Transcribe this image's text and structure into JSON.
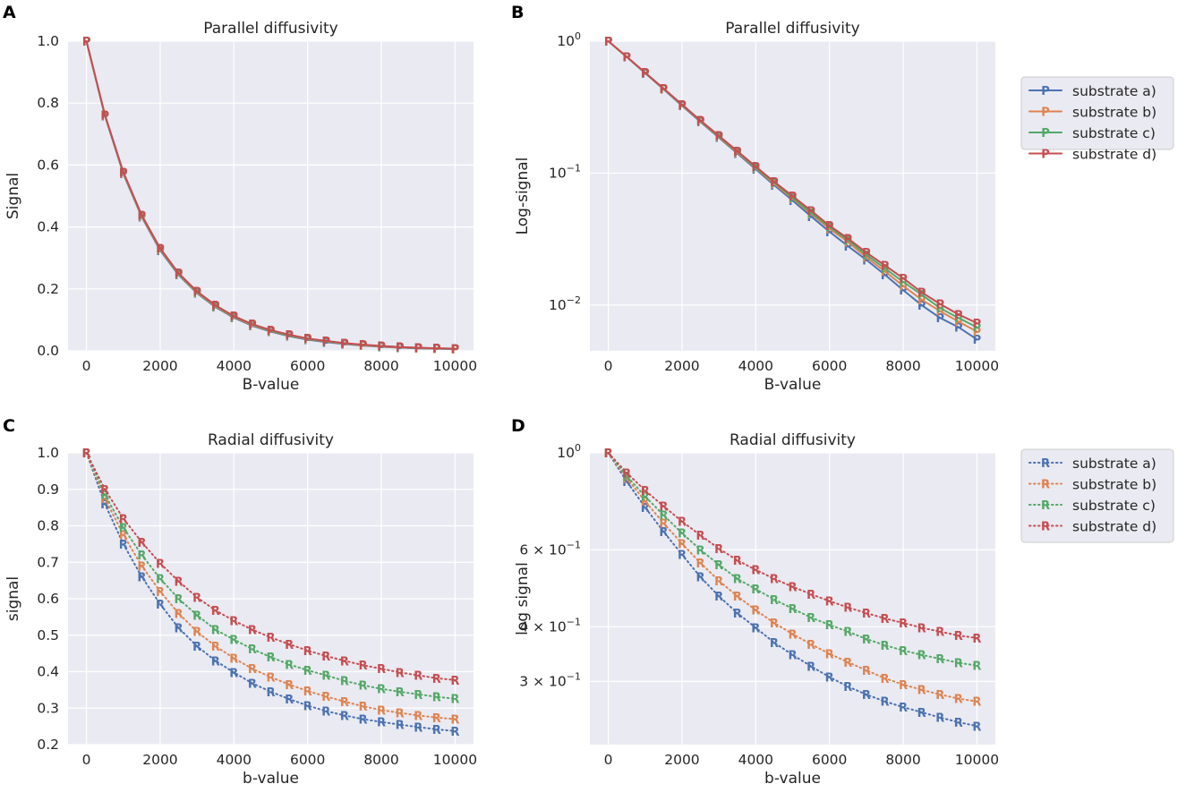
{
  "panels": {
    "A": {
      "letter": "A",
      "title": "Parallel diffusivity",
      "xlabel": "B-value",
      "ylabel": "Signal"
    },
    "B": {
      "letter": "B",
      "title": "Parallel diffusivity",
      "xlabel": "B-value",
      "ylabel": "Log-signal"
    },
    "C": {
      "letter": "C",
      "title": "Radial diffusivity",
      "xlabel": "b-value",
      "ylabel": "signal"
    },
    "D": {
      "letter": "D",
      "title": "Radial diffusivity",
      "xlabel": "b-value",
      "ylabel": "log signal"
    }
  },
  "legend_top": {
    "marker": "P",
    "entries": [
      "substrate a)",
      "substrate b)",
      "substrate c)",
      "substrate d)"
    ],
    "line_style": "solid"
  },
  "legend_bottom": {
    "marker": "R",
    "entries": [
      "substrate a)",
      "substrate b)",
      "substrate c)",
      "substrate d)"
    ],
    "line_style": "dotted"
  },
  "colors": {
    "substrate_a": "#4c72b0",
    "substrate_b": "#dd8452",
    "substrate_c": "#55a868",
    "substrate_d": "#c44e52",
    "axes_bg": "#eaeaf2",
    "grid": "#ffffff"
  },
  "chart_data": [
    {
      "panel": "A",
      "type": "line",
      "title": "Parallel diffusivity",
      "xlabel": "B-value",
      "ylabel": "Signal",
      "xlim": [
        -500,
        10500
      ],
      "ylim": [
        0,
        1.0
      ],
      "yscale": "linear",
      "xticks": [
        0,
        2000,
        4000,
        6000,
        8000,
        10000
      ],
      "yticks": [
        0.0,
        0.2,
        0.4,
        0.6,
        0.8,
        1.0
      ],
      "ytick_labels": [
        "0.0",
        "0.2",
        "0.4",
        "0.6",
        "0.8",
        "1.0"
      ],
      "x": [
        0,
        500,
        1000,
        1500,
        2000,
        2500,
        3000,
        3500,
        4000,
        4500,
        5000,
        5500,
        6000,
        6500,
        7000,
        7500,
        8000,
        8500,
        9000,
        9500,
        10000
      ],
      "series": [
        {
          "name": "substrate a)",
          "values": [
            1.0,
            0.759,
            0.572,
            0.432,
            0.324,
            0.245,
            0.186,
            0.141,
            0.107,
            0.081,
            0.062,
            0.047,
            0.036,
            0.028,
            0.022,
            0.017,
            0.013,
            0.01,
            0.008,
            0.0068,
            0.0055
          ]
        },
        {
          "name": "substrate b)",
          "values": [
            1.0,
            0.76,
            0.574,
            0.434,
            0.327,
            0.247,
            0.188,
            0.143,
            0.109,
            0.083,
            0.064,
            0.049,
            0.038,
            0.03,
            0.023,
            0.018,
            0.014,
            0.011,
            0.009,
            0.0075,
            0.0063
          ]
        },
        {
          "name": "substrate c)",
          "values": [
            1.0,
            0.761,
            0.576,
            0.436,
            0.329,
            0.249,
            0.19,
            0.145,
            0.11,
            0.085,
            0.065,
            0.05,
            0.039,
            0.031,
            0.024,
            0.019,
            0.015,
            0.012,
            0.0095,
            0.008,
            0.0068
          ]
        },
        {
          "name": "substrate d)",
          "values": [
            1.0,
            0.762,
            0.577,
            0.438,
            0.331,
            0.251,
            0.192,
            0.147,
            0.112,
            0.086,
            0.067,
            0.052,
            0.04,
            0.032,
            0.025,
            0.02,
            0.016,
            0.0125,
            0.0102,
            0.0085,
            0.0073
          ]
        }
      ]
    },
    {
      "panel": "B",
      "type": "line",
      "title": "Parallel diffusivity",
      "xlabel": "B-value",
      "ylabel": "Log-signal",
      "xlim": [
        -500,
        10500
      ],
      "ylim": [
        0.0045,
        1.0
      ],
      "yscale": "log",
      "xticks": [
        0,
        2000,
        4000,
        6000,
        8000,
        10000
      ],
      "yticks": [
        1.0,
        0.1,
        0.01
      ],
      "ytick_labels": [
        {
          "base": "10",
          "exp": "0"
        },
        {
          "base": "10",
          "exp": "−1"
        },
        {
          "base": "10",
          "exp": "−2"
        }
      ],
      "x": [
        0,
        500,
        1000,
        1500,
        2000,
        2500,
        3000,
        3500,
        4000,
        4500,
        5000,
        5500,
        6000,
        6500,
        7000,
        7500,
        8000,
        8500,
        9000,
        9500,
        10000
      ],
      "series": [
        {
          "name": "substrate a)",
          "values": [
            1.0,
            0.759,
            0.572,
            0.432,
            0.324,
            0.245,
            0.186,
            0.141,
            0.107,
            0.081,
            0.062,
            0.047,
            0.036,
            0.028,
            0.022,
            0.017,
            0.013,
            0.01,
            0.008,
            0.0068,
            0.0055
          ]
        },
        {
          "name": "substrate b)",
          "values": [
            1.0,
            0.76,
            0.574,
            0.434,
            0.327,
            0.247,
            0.188,
            0.143,
            0.109,
            0.083,
            0.064,
            0.049,
            0.038,
            0.03,
            0.023,
            0.018,
            0.014,
            0.011,
            0.009,
            0.0075,
            0.0063
          ]
        },
        {
          "name": "substrate c)",
          "values": [
            1.0,
            0.761,
            0.576,
            0.436,
            0.329,
            0.249,
            0.19,
            0.145,
            0.11,
            0.085,
            0.065,
            0.05,
            0.039,
            0.031,
            0.024,
            0.019,
            0.015,
            0.012,
            0.0095,
            0.008,
            0.0068
          ]
        },
        {
          "name": "substrate d)",
          "values": [
            1.0,
            0.762,
            0.577,
            0.438,
            0.331,
            0.251,
            0.192,
            0.147,
            0.112,
            0.086,
            0.067,
            0.052,
            0.04,
            0.032,
            0.025,
            0.02,
            0.016,
            0.0125,
            0.0102,
            0.0085,
            0.0073
          ]
        }
      ]
    },
    {
      "panel": "C",
      "type": "line",
      "title": "Radial diffusivity",
      "xlabel": "b-value",
      "ylabel": "signal",
      "xlim": [
        -500,
        10500
      ],
      "ylim": [
        0.2,
        1.0
      ],
      "yscale": "linear",
      "xticks": [
        0,
        2000,
        4000,
        6000,
        8000,
        10000
      ],
      "yticks": [
        0.2,
        0.3,
        0.4,
        0.5,
        0.6,
        0.7,
        0.8,
        0.9,
        1.0
      ],
      "ytick_labels": [
        "0.2",
        "0.3",
        "0.4",
        "0.5",
        "0.6",
        "0.7",
        "0.8",
        "0.9",
        "1.0"
      ],
      "x": [
        0,
        500,
        1000,
        1500,
        2000,
        2500,
        3000,
        3500,
        4000,
        4500,
        5000,
        5500,
        6000,
        6500,
        7000,
        7500,
        8000,
        8500,
        9000,
        9500,
        10000
      ],
      "series": [
        {
          "name": "substrate a)",
          "values": [
            1.0,
            0.86,
            0.75,
            0.66,
            0.585,
            0.52,
            0.47,
            0.43,
            0.398,
            0.368,
            0.345,
            0.325,
            0.307,
            0.292,
            0.28,
            0.27,
            0.262,
            0.255,
            0.248,
            0.242,
            0.237
          ]
        },
        {
          "name": "substrate b)",
          "values": [
            1.0,
            0.875,
            0.775,
            0.69,
            0.62,
            0.56,
            0.51,
            0.47,
            0.437,
            0.408,
            0.385,
            0.365,
            0.347,
            0.332,
            0.318,
            0.305,
            0.295,
            0.287,
            0.28,
            0.274,
            0.27
          ]
        },
        {
          "name": "substrate c)",
          "values": [
            1.0,
            0.885,
            0.795,
            0.72,
            0.655,
            0.6,
            0.555,
            0.515,
            0.488,
            0.462,
            0.44,
            0.42,
            0.404,
            0.39,
            0.375,
            0.363,
            0.353,
            0.345,
            0.338,
            0.331,
            0.326
          ]
        },
        {
          "name": "substrate d)",
          "values": [
            1.0,
            0.9,
            0.82,
            0.755,
            0.697,
            0.648,
            0.604,
            0.568,
            0.54,
            0.515,
            0.494,
            0.475,
            0.458,
            0.443,
            0.43,
            0.418,
            0.408,
            0.398,
            0.39,
            0.382,
            0.377
          ]
        }
      ]
    },
    {
      "panel": "D",
      "type": "line",
      "title": "Radial diffusivity",
      "xlabel": "b-value",
      "ylabel": "log signal",
      "xlim": [
        -500,
        10500
      ],
      "ylim": [
        0.215,
        1.0
      ],
      "yscale": "log",
      "xticks": [
        0,
        2000,
        4000,
        6000,
        8000,
        10000
      ],
      "yticks": [
        1.0,
        0.6,
        0.4,
        0.3
      ],
      "ytick_labels": [
        {
          "base": "10",
          "exp": "0"
        },
        {
          "mantissa": "6",
          "base": "10",
          "exp": "−1"
        },
        {
          "mantissa": "4",
          "base": "10",
          "exp": "−1"
        },
        {
          "mantissa": "3",
          "base": "10",
          "exp": "−1"
        }
      ],
      "x": [
        0,
        500,
        1000,
        1500,
        2000,
        2500,
        3000,
        3500,
        4000,
        4500,
        5000,
        5500,
        6000,
        6500,
        7000,
        7500,
        8000,
        8500,
        9000,
        9500,
        10000
      ],
      "series": [
        {
          "name": "substrate a)",
          "values": [
            1.0,
            0.86,
            0.75,
            0.66,
            0.585,
            0.52,
            0.47,
            0.43,
            0.398,
            0.368,
            0.345,
            0.325,
            0.307,
            0.292,
            0.28,
            0.27,
            0.262,
            0.255,
            0.248,
            0.242,
            0.237
          ]
        },
        {
          "name": "substrate b)",
          "values": [
            1.0,
            0.875,
            0.775,
            0.69,
            0.62,
            0.56,
            0.51,
            0.47,
            0.437,
            0.408,
            0.385,
            0.365,
            0.347,
            0.332,
            0.318,
            0.305,
            0.295,
            0.287,
            0.28,
            0.274,
            0.27
          ]
        },
        {
          "name": "substrate c)",
          "values": [
            1.0,
            0.885,
            0.795,
            0.72,
            0.655,
            0.6,
            0.555,
            0.515,
            0.488,
            0.462,
            0.44,
            0.42,
            0.404,
            0.39,
            0.375,
            0.363,
            0.353,
            0.345,
            0.338,
            0.331,
            0.326
          ]
        },
        {
          "name": "substrate d)",
          "values": [
            1.0,
            0.9,
            0.82,
            0.755,
            0.697,
            0.648,
            0.604,
            0.568,
            0.54,
            0.515,
            0.494,
            0.475,
            0.458,
            0.443,
            0.43,
            0.418,
            0.408,
            0.398,
            0.39,
            0.382,
            0.377
          ]
        }
      ]
    }
  ]
}
